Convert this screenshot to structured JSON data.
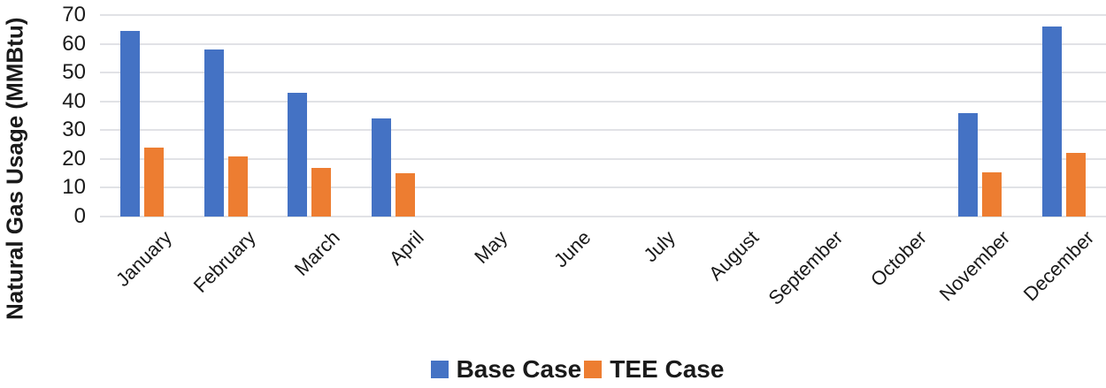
{
  "chart_data": {
    "type": "bar",
    "title": "",
    "xlabel": "",
    "ylabel": "Natural Gas Usage (MMBtu)",
    "categories": [
      "January",
      "February",
      "March",
      "April",
      "May",
      "June",
      "July",
      "August",
      "September",
      "October",
      "November",
      "December"
    ],
    "series": [
      {
        "name": "Base Case",
        "color": "#4472C4",
        "values": [
          64.5,
          58,
          43,
          34,
          0,
          0,
          0,
          0,
          0,
          0,
          36,
          66
        ]
      },
      {
        "name": "TEE Case",
        "color": "#ED7D31",
        "values": [
          24,
          21,
          17,
          15,
          0,
          0,
          0,
          0,
          0,
          0,
          15.5,
          22
        ]
      }
    ],
    "ylim": [
      0,
      70
    ],
    "yticks": [
      0,
      10,
      20,
      30,
      40,
      50,
      60,
      70
    ],
    "grid": true,
    "legend_position": "bottom"
  },
  "colors": {
    "background": "#FFFFFF",
    "gridline": "#E1E2E6",
    "text": "#1A1A1A",
    "base_case": "#4472C4",
    "tee_case": "#ED7D31"
  }
}
